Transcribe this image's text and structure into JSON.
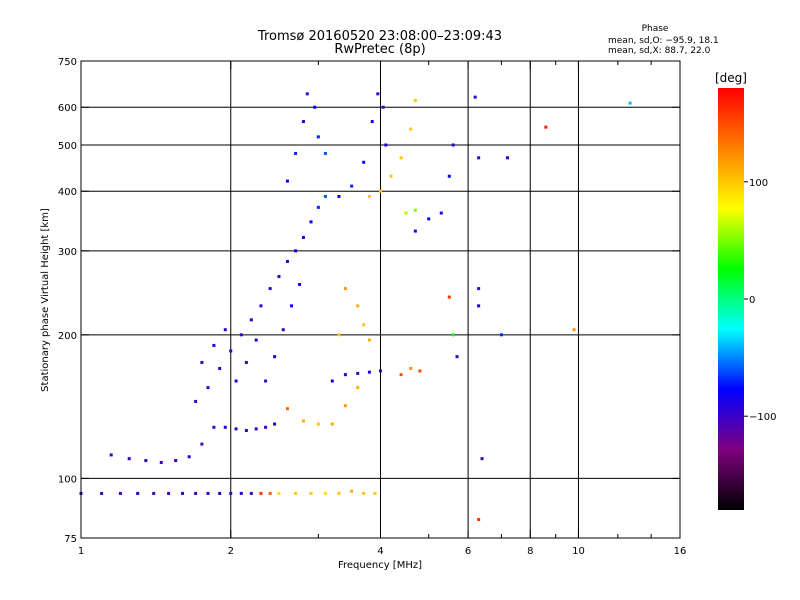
{
  "title_line1": "Tromsø 20160520 23:08:00–23:09:43",
  "title_line2": "RwPretec (8p)",
  "phase_header": "Phase",
  "phase_stat_o": "mean, sd,O: −95.9, 18.1",
  "phase_stat_x": "mean, sd,X:  88.7, 22.0",
  "colorbar": {
    "unit_label": "[deg]",
    "range": [
      -180,
      180
    ],
    "ticks": [
      {
        "value": 100,
        "label": "100"
      },
      {
        "value": 0,
        "label": "0"
      },
      {
        "value": -100,
        "label": "−100"
      }
    ],
    "stops": [
      "#000000",
      "#800080",
      "#0000ff",
      "#00ffff",
      "#00ff00",
      "#ffff00",
      "#ff8000",
      "#ff0000"
    ]
  },
  "chart_data": {
    "type": "scatter",
    "xscale": "log",
    "yscale": "log",
    "xlim": [
      1,
      16
    ],
    "ylim": [
      75,
      750
    ],
    "xlabel": "Frequency [MHz]",
    "ylabel": "Stationary phase Virtual Height [km]",
    "xticks": [
      {
        "value": 1,
        "label": "1"
      },
      {
        "value": 2,
        "label": "2"
      },
      {
        "value": 4,
        "label": "4"
      },
      {
        "value": 6,
        "label": "6"
      },
      {
        "value": 8,
        "label": "8"
      },
      {
        "value": 10,
        "label": "10"
      },
      {
        "value": 16,
        "label": "16"
      }
    ],
    "x_gridlines": [
      2,
      4,
      6,
      8,
      10
    ],
    "x_minor_ticks": [
      3,
      5,
      7,
      9,
      12,
      14
    ],
    "yticks": [
      {
        "value": 75,
        "label": "75"
      },
      {
        "value": 100,
        "label": "100"
      },
      {
        "value": 200,
        "label": "200"
      },
      {
        "value": 300,
        "label": "300"
      },
      {
        "value": 400,
        "label": "400"
      },
      {
        "value": 500,
        "label": "500"
      },
      {
        "value": 600,
        "label": "600"
      },
      {
        "value": 750,
        "label": "750"
      }
    ],
    "y_gridlines": [
      100,
      200,
      300,
      400,
      500,
      600
    ],
    "points": [
      [
        1.0,
        93,
        -100
      ],
      [
        1.1,
        93,
        -100
      ],
      [
        1.2,
        93,
        -100
      ],
      [
        1.3,
        93,
        -95
      ],
      [
        1.4,
        93,
        -100
      ],
      [
        1.5,
        93,
        -100
      ],
      [
        1.6,
        93,
        -95
      ],
      [
        1.7,
        93,
        -100
      ],
      [
        1.8,
        93,
        -100
      ],
      [
        1.9,
        93,
        -95
      ],
      [
        2.0,
        93,
        -100
      ],
      [
        2.1,
        93,
        -90
      ],
      [
        2.2,
        93,
        -100
      ],
      [
        2.3,
        93,
        160
      ],
      [
        2.4,
        93,
        140
      ],
      [
        2.5,
        93,
        90
      ],
      [
        2.7,
        93,
        100
      ],
      [
        2.9,
        93,
        100
      ],
      [
        3.1,
        93,
        90
      ],
      [
        3.3,
        93,
        100
      ],
      [
        3.5,
        94,
        110
      ],
      [
        3.7,
        93,
        100
      ],
      [
        3.9,
        93,
        100
      ],
      [
        1.15,
        112,
        -100
      ],
      [
        1.25,
        110,
        -100
      ],
      [
        1.35,
        109,
        -95
      ],
      [
        1.45,
        108,
        -100
      ],
      [
        1.55,
        109,
        -100
      ],
      [
        1.65,
        111,
        -95
      ],
      [
        1.75,
        118,
        -100
      ],
      [
        1.85,
        128,
        -100
      ],
      [
        1.95,
        128,
        -95
      ],
      [
        2.05,
        127,
        -100
      ],
      [
        2.15,
        126,
        -95
      ],
      [
        2.25,
        127,
        -100
      ],
      [
        2.35,
        128,
        -100
      ],
      [
        2.45,
        130,
        -90
      ],
      [
        1.7,
        145,
        -100
      ],
      [
        1.8,
        155,
        -95
      ],
      [
        1.9,
        170,
        -100
      ],
      [
        2.0,
        185,
        -90
      ],
      [
        2.1,
        200,
        -100
      ],
      [
        2.2,
        215,
        -95
      ],
      [
        2.3,
        230,
        -100
      ],
      [
        2.4,
        250,
        -90
      ],
      [
        2.5,
        265,
        -100
      ],
      [
        2.6,
        285,
        -95
      ],
      [
        2.7,
        300,
        -85
      ],
      [
        2.8,
        320,
        -90
      ],
      [
        2.9,
        345,
        -80
      ],
      [
        3.0,
        370,
        -70
      ],
      [
        3.1,
        390,
        -60
      ],
      [
        1.75,
        175,
        -100
      ],
      [
        1.85,
        190,
        -90
      ],
      [
        1.95,
        205,
        -100
      ],
      [
        2.05,
        160,
        -90
      ],
      [
        2.15,
        175,
        -100
      ],
      [
        2.25,
        195,
        -90
      ],
      [
        2.35,
        160,
        -100
      ],
      [
        2.45,
        180,
        -85
      ],
      [
        2.55,
        205,
        -100
      ],
      [
        2.65,
        230,
        -80
      ],
      [
        2.75,
        255,
        -90
      ],
      [
        2.6,
        420,
        -80
      ],
      [
        2.7,
        480,
        -70
      ],
      [
        2.8,
        560,
        -90
      ],
      [
        2.85,
        640,
        -100
      ],
      [
        2.95,
        600,
        -80
      ],
      [
        3.0,
        520,
        -70
      ],
      [
        3.1,
        480,
        -60
      ],
      [
        3.3,
        390,
        -80
      ],
      [
        3.5,
        410,
        -70
      ],
      [
        3.7,
        460,
        -80
      ],
      [
        3.85,
        560,
        -90
      ],
      [
        3.95,
        640,
        -100
      ],
      [
        4.05,
        600,
        -100
      ],
      [
        4.1,
        500,
        -90
      ],
      [
        3.2,
        160,
        -80
      ],
      [
        3.4,
        165,
        -90
      ],
      [
        3.6,
        166,
        -100
      ],
      [
        3.8,
        167,
        -90
      ],
      [
        4.0,
        168,
        -100
      ],
      [
        2.6,
        140,
        140
      ],
      [
        2.8,
        132,
        110
      ],
      [
        3.0,
        130,
        100
      ],
      [
        3.2,
        130,
        110
      ],
      [
        3.4,
        142,
        120
      ],
      [
        3.6,
        155,
        110
      ],
      [
        3.4,
        250,
        120
      ],
      [
        3.6,
        230,
        110
      ],
      [
        3.7,
        210,
        100
      ],
      [
        3.8,
        195,
        110
      ],
      [
        3.3,
        200,
        100
      ],
      [
        3.8,
        390,
        100
      ],
      [
        4.0,
        400,
        100
      ],
      [
        4.2,
        430,
        100
      ],
      [
        4.4,
        470,
        100
      ],
      [
        4.6,
        540,
        100
      ],
      [
        4.7,
        620,
        100
      ],
      [
        4.5,
        360,
        60
      ],
      [
        4.7,
        365,
        50
      ],
      [
        4.4,
        165,
        150
      ],
      [
        4.6,
        170,
        120
      ],
      [
        4.8,
        168,
        150
      ],
      [
        4.7,
        330,
        -90
      ],
      [
        5.0,
        350,
        -80
      ],
      [
        5.3,
        360,
        -90
      ],
      [
        5.5,
        430,
        -80
      ],
      [
        5.6,
        500,
        -100
      ],
      [
        6.2,
        630,
        -100
      ],
      [
        6.3,
        470,
        -100
      ],
      [
        6.3,
        250,
        -100
      ],
      [
        6.3,
        230,
        -80
      ],
      [
        6.4,
        110,
        -100
      ],
      [
        6.3,
        82,
        160
      ],
      [
        5.5,
        240,
        160
      ],
      [
        5.6,
        200,
        20
      ],
      [
        5.7,
        180,
        -100
      ],
      [
        7.0,
        200,
        -70
      ],
      [
        7.2,
        470,
        -100
      ],
      [
        8.6,
        545,
        170
      ],
      [
        9.8,
        205,
        120
      ],
      [
        12.7,
        612,
        -40
      ]
    ]
  }
}
